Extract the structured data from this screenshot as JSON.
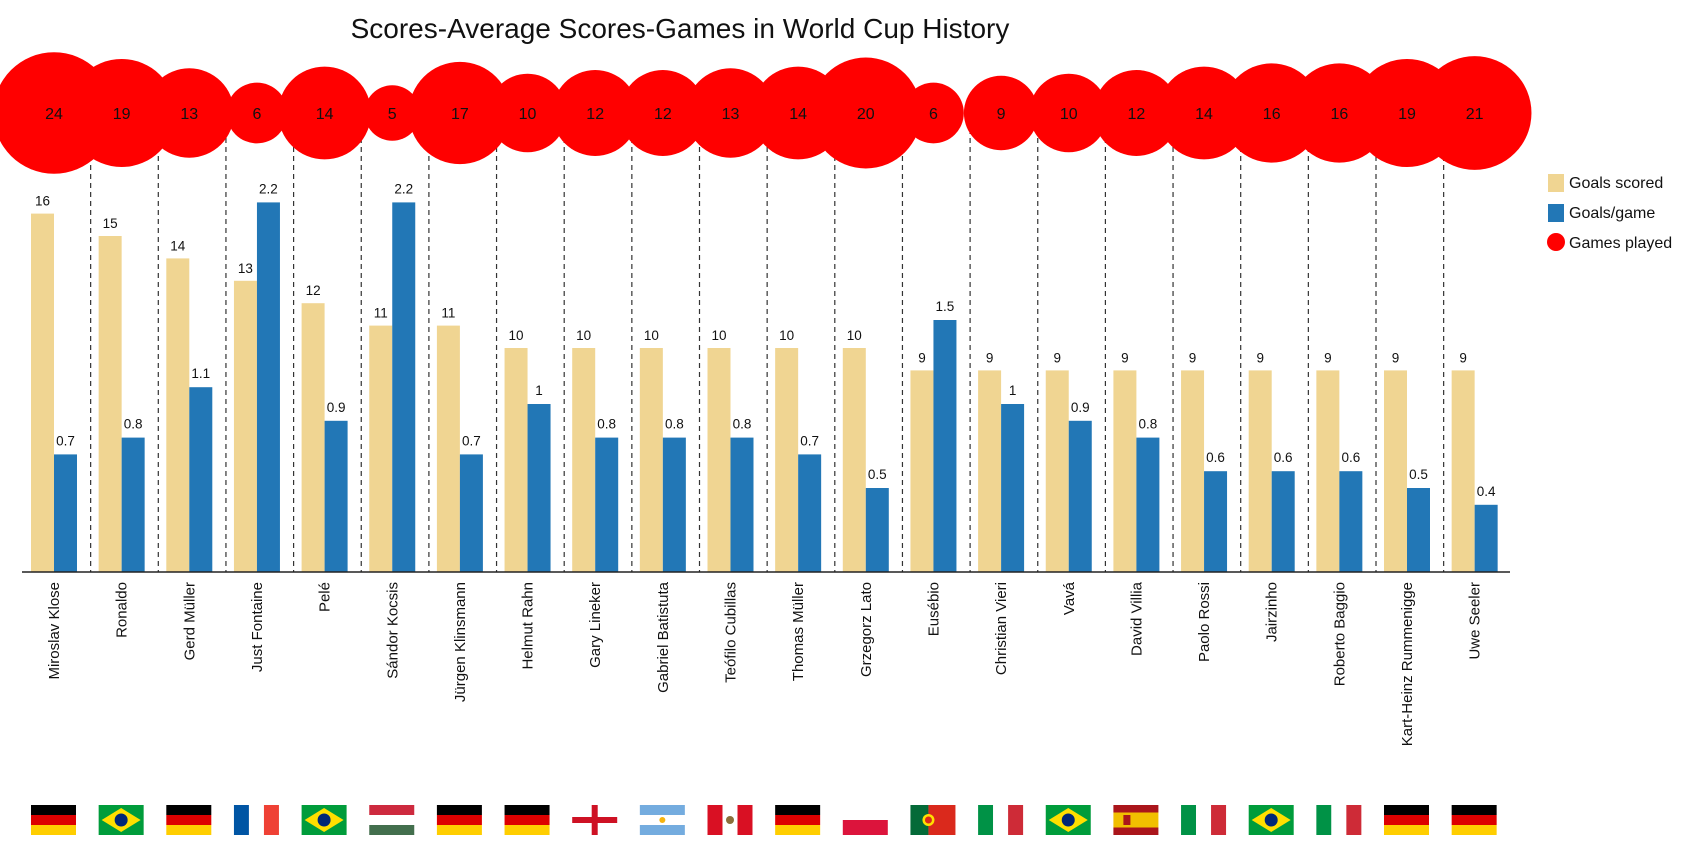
{
  "chart_data": {
    "type": "bar",
    "title": "Scores-Average Scores-Games in World Cup History",
    "categories": [
      "Miroslav Klose",
      "Ronaldo",
      "Gerd Müller",
      "Just Fontaine",
      "Pelé",
      "Sándor Kocsis",
      "Jürgen Klinsmann",
      "Helmut Rahn",
      "Gary Lineker",
      "Gabriel Batistuta",
      "Teófilo Cubillas",
      "Thomas Müller",
      "Grzegorz Lato",
      "Eusébio",
      "Christian Vieri",
      "Vavá",
      "David Villia",
      "Paolo Rossi",
      "Jairzinho",
      "Roberto Baggio",
      "Kart-Heinz Rummenigge",
      "Uwe Seeler"
    ],
    "series": [
      {
        "name": "Goals scored",
        "color": "#F0D592",
        "values": [
          16,
          15,
          14,
          13,
          12,
          11,
          11,
          10,
          10,
          10,
          10,
          10,
          10,
          9,
          9,
          9,
          9,
          9,
          9,
          9,
          9,
          9
        ]
      },
      {
        "name": "Goals/game",
        "color": "#2277B6",
        "values": [
          0.7,
          0.8,
          1.1,
          2.2,
          0.9,
          2.2,
          0.7,
          1,
          0.8,
          0.8,
          0.8,
          0.7,
          0.5,
          1.5,
          1,
          0.9,
          0.8,
          0.6,
          0.6,
          0.6,
          0.5,
          0.4
        ]
      },
      {
        "name": "Games played",
        "color": "#FF0000",
        "values": [
          24,
          19,
          13,
          6,
          14,
          5,
          17,
          10,
          12,
          12,
          13,
          14,
          20,
          6,
          9,
          10,
          12,
          14,
          16,
          16,
          19,
          21
        ]
      }
    ],
    "flags": [
      "germany",
      "brazil",
      "germany",
      "france",
      "brazil",
      "hungary",
      "germany",
      "germany",
      "england",
      "argentina",
      "peru",
      "germany",
      "poland",
      "portugal",
      "italy",
      "brazil",
      "spain",
      "italy",
      "brazil",
      "italy",
      "germany",
      "germany"
    ],
    "legend_position": "right",
    "grid": false
  }
}
